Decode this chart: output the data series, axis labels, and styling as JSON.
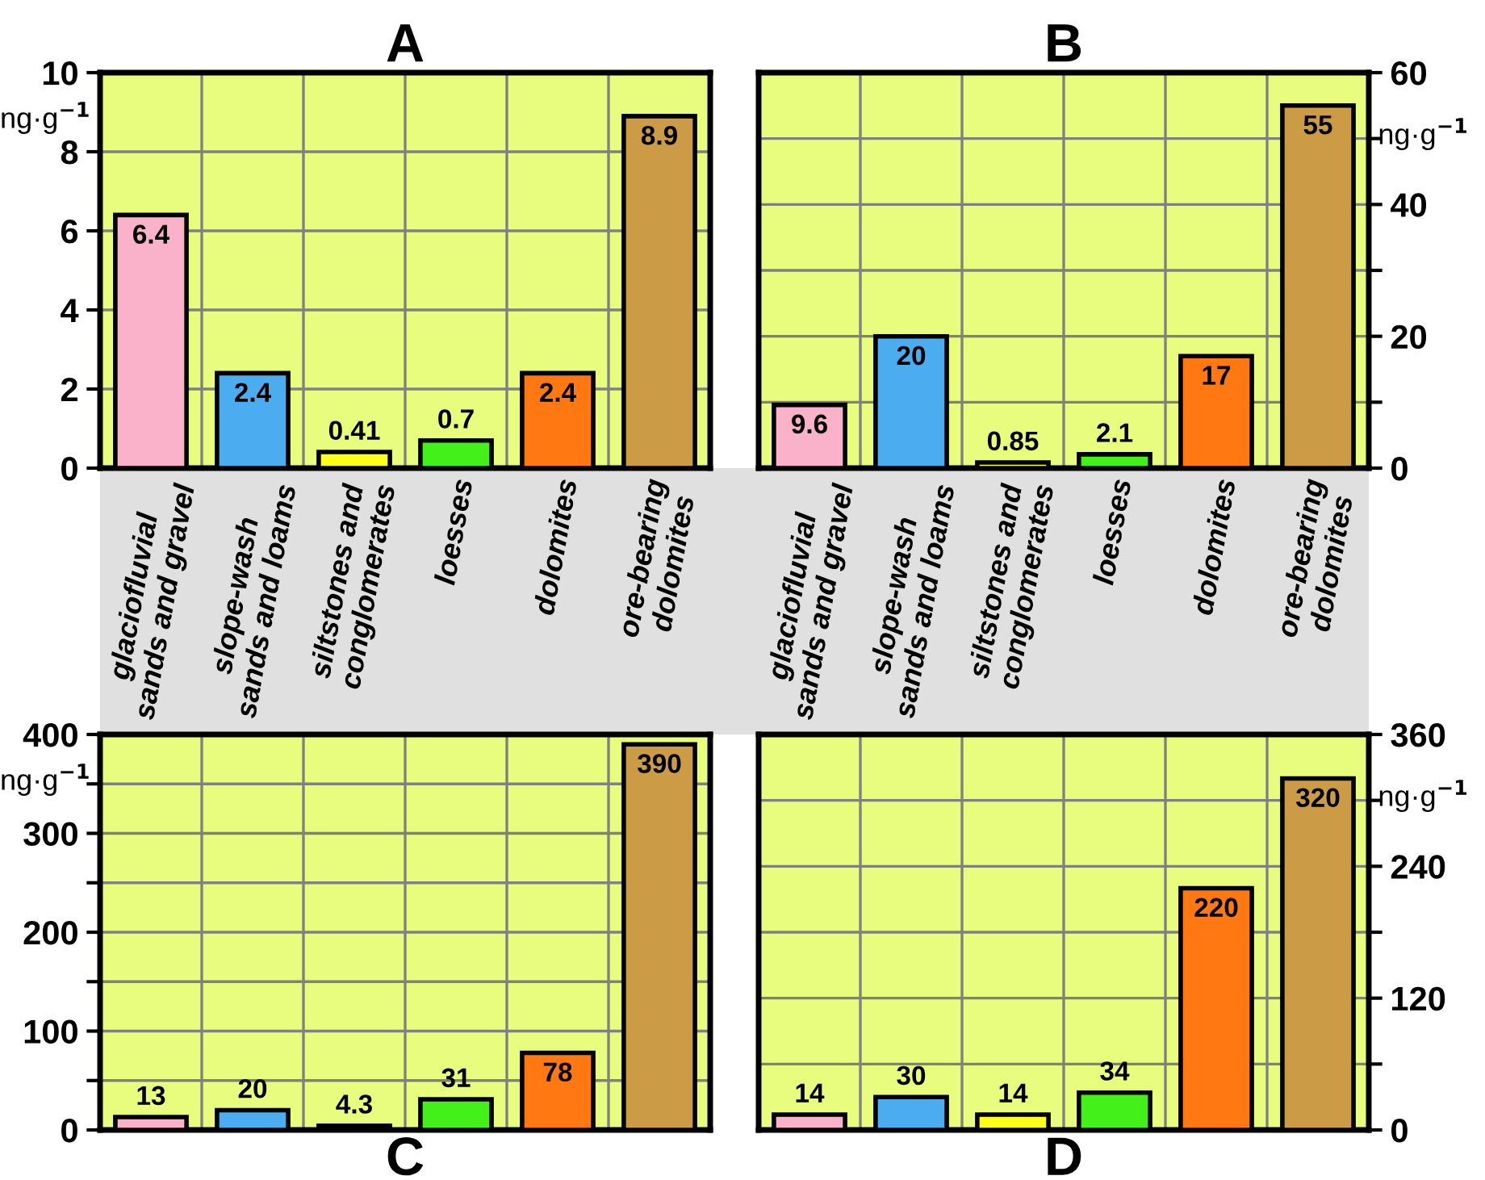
{
  "chart_data": [
    {
      "type": "bar",
      "title": "A",
      "ylabel": "ng·g$^{−1}$",
      "categories": [
        "glaciofluvial\nsands and gravel",
        "slope-wash\nsands and loams",
        "siltstones and\nconglomerates",
        "loesses",
        "dolomites",
        "ore-bearing\ndolomites"
      ],
      "values": [
        6.4,
        2.4,
        0.41,
        0.7,
        2.4,
        8.9
      ],
      "colors": [
        "#f9b2c9",
        "#4cacf0",
        "#ffff1a",
        "#44f01a",
        "#ff7812",
        "#cc9b45"
      ],
      "ylim": [
        0,
        10
      ],
      "yticks": [
        0,
        2,
        4,
        6,
        8,
        10
      ],
      "grid": true,
      "data_labels": true
    },
    {
      "type": "bar",
      "title": "B",
      "ylabel": "ng·g$^{−1}$",
      "categories": [
        "glaciofluvial\nsands and gravel",
        "slope-wash\nsands and loams",
        "siltstones and\nconglomerates",
        "loesses",
        "dolomites",
        "ore-bearing\ndolomites"
      ],
      "values": [
        9.6,
        20,
        0.85,
        2.1,
        17,
        55
      ],
      "colors": [
        "#f9b2c9",
        "#4cacf0",
        "#ffff1a",
        "#44f01a",
        "#ff7812",
        "#cc9b45"
      ],
      "ylim": [
        0,
        60
      ],
      "yticks": [
        0,
        {
          "value": 10,
          "label": null
        },
        20,
        {
          "value": 30,
          "label": null
        },
        40,
        {
          "value": 50,
          "label": null
        },
        60
      ],
      "grid": true,
      "data_labels": true
    },
    {
      "type": "bar",
      "title": "C",
      "ylabel": "ng·g$^{−1}$",
      "categories": [
        null,
        null,
        null,
        null,
        null,
        null
      ],
      "values": [
        13,
        20,
        4.3,
        31,
        78,
        390
      ],
      "colors": [
        "#f9b2c9",
        "#4cacf0",
        "#ffff1a",
        "#44f01a",
        "#ff7812",
        "#cc9b45"
      ],
      "ylim": [
        0,
        400
      ],
      "yticks": [
        0,
        {
          "value": 50,
          "label": null
        },
        100,
        {
          "value": 150,
          "label": null
        },
        200,
        {
          "value": 250,
          "label": null
        },
        300,
        {
          "value": 350,
          "label": null
        },
        400
      ],
      "grid": true,
      "data_labels": true,
      "tick_labels": "y"
    },
    {
      "type": "bar",
      "title": "D",
      "ylabel": "ng·g$^{−1}$",
      "categories": [
        null,
        null,
        null,
        null,
        null,
        null
      ],
      "values": [
        14,
        30,
        14,
        34,
        220,
        320
      ],
      "colors": [
        "#f9b2c9",
        "#4cacf0",
        "#ffff1a",
        "#44f01a",
        "#ff7812",
        "#cc9b45"
      ],
      "ylim": [
        0,
        360
      ],
      "yticks": [
        0,
        {
          "value": 60,
          "label": null
        },
        120,
        {
          "value": 180,
          "label": null
        },
        240,
        {
          "value": 300,
          "label": null
        },
        360
      ],
      "grid": true,
      "data_labels": true,
      "tick_labels": "y"
    }
  ]
}
